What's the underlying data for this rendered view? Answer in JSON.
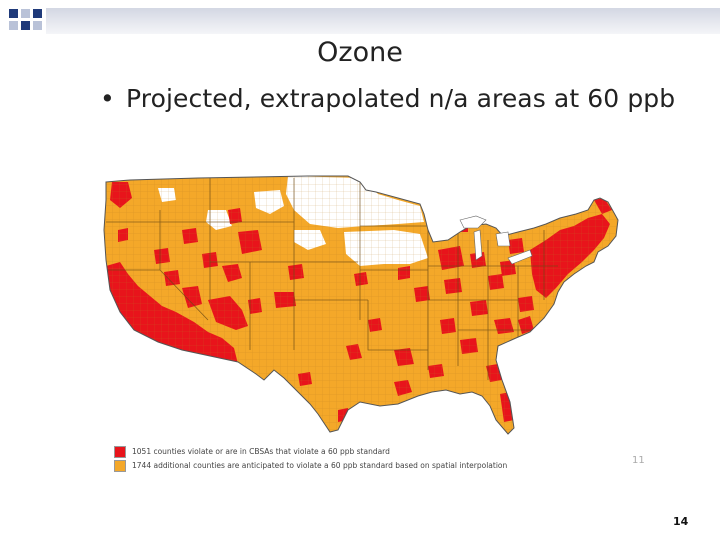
{
  "slide": {
    "title": "Ozone",
    "bullet": "Projected, extrapolated n/a areas at 60 ppb",
    "slide_number": "14"
  },
  "map": {
    "legend": [
      {
        "label": "1051 counties violate or are in CBSAs that violate a 60 ppb standard",
        "color": "#e8141b"
      },
      {
        "label": "1744 additional counties are anticipated to violate a 60 ppb standard based on spatial interpolation",
        "color": "#f4a829"
      }
    ],
    "inner_page_number": "11",
    "colors": {
      "violating": "#e8141b",
      "anticipated": "#f4a829",
      "unshaded": "#ffffff",
      "borders": "#8c6a2f"
    }
  },
  "header": {
    "colors": {
      "square_dark": "#1f3a7a",
      "square_light": "#b9c2d8"
    }
  }
}
